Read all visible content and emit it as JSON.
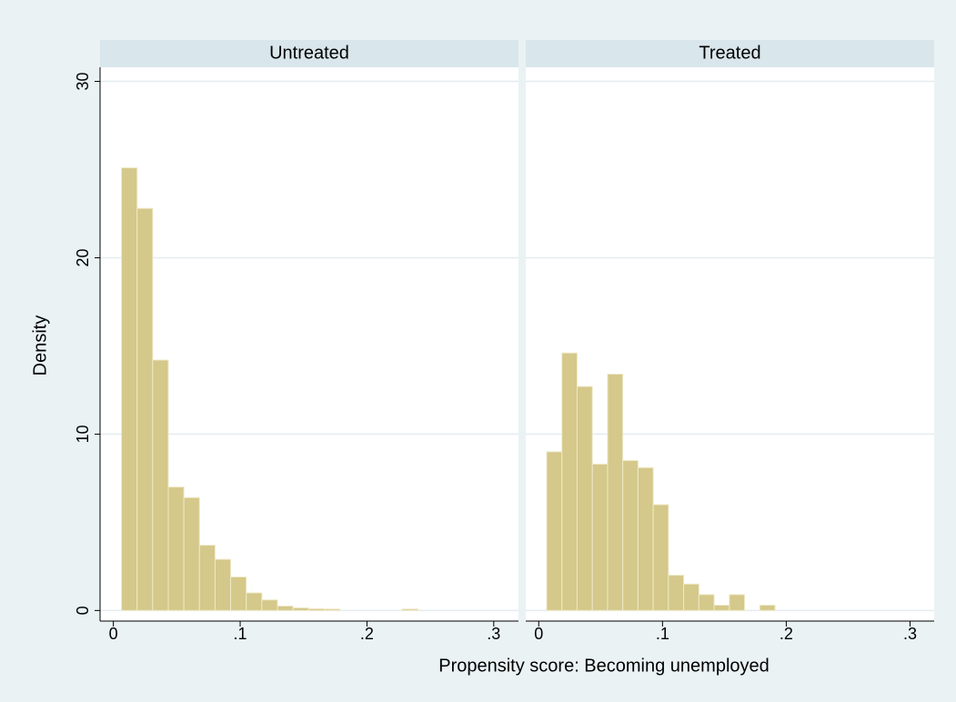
{
  "chart_data": {
    "type": "histogram",
    "xlabel": "Propensity score: Becoming unemployed",
    "ylabel": "Density",
    "xlim": [
      -0.0105,
      0.3195
    ],
    "xticks": [
      0,
      {
        "value": 0.1,
        "label": ".1"
      },
      {
        "value": 0.2,
        "label": ".2"
      },
      {
        "value": 0.3,
        "label": ".3"
      }
    ],
    "ylim": [
      -0.6,
      30.8
    ],
    "yticks": [
      0,
      10,
      20,
      30
    ],
    "grid": true,
    "color": "#d4c88a",
    "bins": [
      0.0064,
      0.0187,
      0.031,
      0.0433,
      0.0556,
      0.0679,
      0.0802,
      0.0925,
      0.1048,
      0.1171,
      0.1294,
      0.1417,
      0.154,
      0.1663,
      0.1786,
      0.1909,
      0.2032,
      0.2155,
      0.2278,
      0.2401,
      0.2524,
      0.2647,
      0.277,
      0.2893,
      0.3016
    ],
    "panels": [
      {
        "title": "Untreated",
        "values": [
          25.1,
          22.8,
          14.2,
          7.0,
          6.4,
          3.7,
          2.9,
          1.9,
          1.0,
          0.6,
          0.25,
          0.15,
          0.1,
          0.08,
          0,
          0,
          0,
          0,
          0.08,
          0,
          0,
          0,
          0,
          0
        ]
      },
      {
        "title": "Treated",
        "values": [
          9.0,
          14.6,
          12.7,
          8.3,
          13.4,
          8.5,
          8.1,
          6.0,
          2.0,
          1.5,
          0.9,
          0.3,
          0.9,
          0,
          0.3,
          0,
          0,
          0,
          0,
          0,
          0,
          0,
          0,
          0
        ]
      }
    ]
  }
}
